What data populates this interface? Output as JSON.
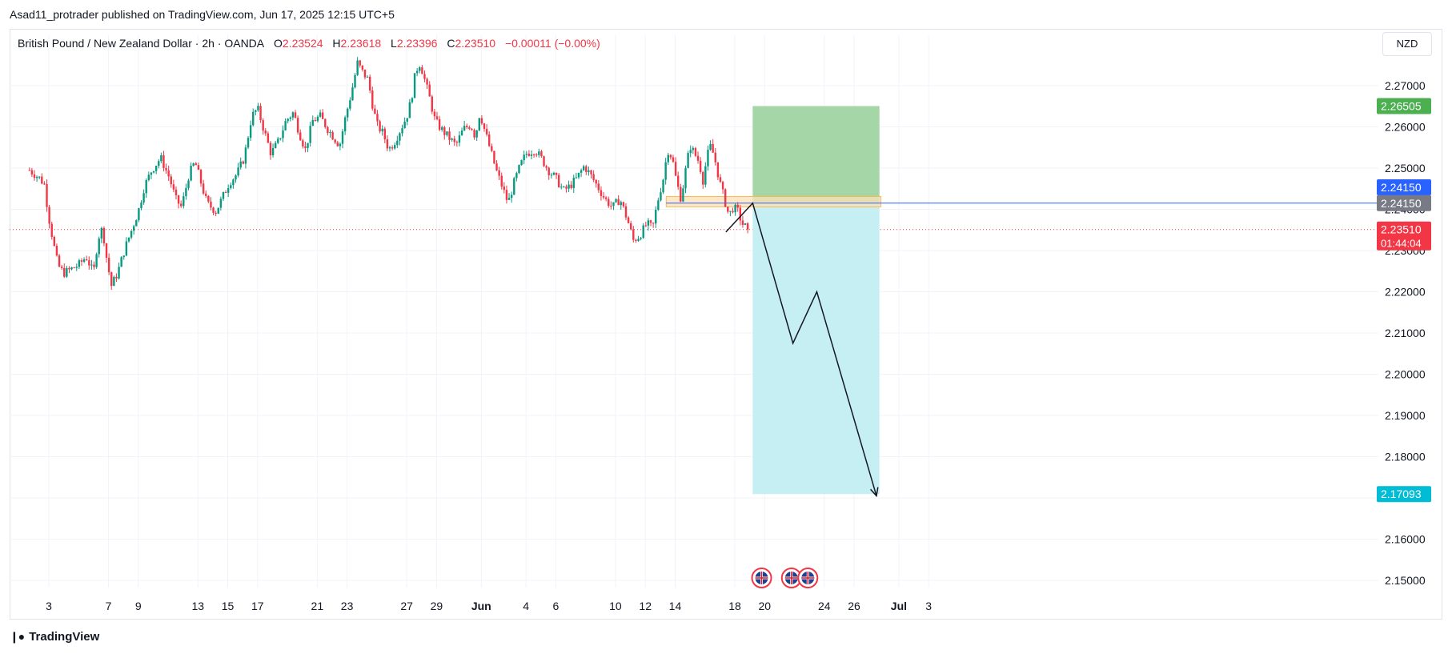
{
  "header": {
    "published_line": "Asad11_protrader published on TradingView.com, Jun 17, 2025 12:15 UTC+5"
  },
  "legend": {
    "symbol": "British Pound / New Zealand Dollar · 2h · OANDA",
    "o_label": "O",
    "o_value": "2.23524",
    "h_label": "H",
    "h_value": "2.23618",
    "l_label": "L",
    "l_value": "2.23396",
    "c_label": "C",
    "c_value": "2.23510",
    "change": "−0.00011 (−0.00%)"
  },
  "currency_button": "NZD",
  "footer": {
    "logo_text": "TradingView"
  },
  "colors": {
    "up": "#089981",
    "down": "#f23645",
    "grid": "#f0f3fa",
    "target_zone": "#a5d6a7",
    "stop_zone": "#c6eff4",
    "entry_zone": "#ffe0b2",
    "entry_line": "#2962ff",
    "tp_badge": "#4caf50",
    "sl_badge": "#00bcd4",
    "entry_badge_blue": "#2962ff",
    "entry_badge_gray": "#787b86",
    "last_price_badge": "#f23645"
  },
  "chart_data": {
    "type": "candlestick",
    "symbol": "British Pound / New Zealand Dollar",
    "interval": "2h",
    "y_axis": {
      "ticks": [
        "2.27000",
        "2.26000",
        "2.25000",
        "2.24000",
        "2.23000",
        "2.22000",
        "2.21000",
        "2.20000",
        "2.19000",
        "2.18000",
        "2.17000",
        "2.16000",
        "2.15000"
      ],
      "range": [
        2.1453,
        2.2819
      ],
      "position": "right"
    },
    "x_axis": {
      "labels": [
        {
          "text": "3",
          "day": 0
        },
        {
          "text": "7",
          "day": 4
        },
        {
          "text": "9",
          "day": 6
        },
        {
          "text": "13",
          "day": 10
        },
        {
          "text": "15",
          "day": 12
        },
        {
          "text": "17",
          "day": 14
        },
        {
          "text": "21",
          "day": 18
        },
        {
          "text": "23",
          "day": 20
        },
        {
          "text": "27",
          "day": 24
        },
        {
          "text": "29",
          "day": 26
        },
        {
          "text": "Jun",
          "day": 29,
          "bold": true
        },
        {
          "text": "4",
          "day": 32
        },
        {
          "text": "6",
          "day": 34
        },
        {
          "text": "10",
          "day": 38
        },
        {
          "text": "12",
          "day": 40
        },
        {
          "text": "14",
          "day": 42
        },
        {
          "text": "18",
          "day": 46
        },
        {
          "text": "20",
          "day": 48
        },
        {
          "text": "24",
          "day": 52
        },
        {
          "text": "26",
          "day": 54
        },
        {
          "text": "Jul",
          "day": 57,
          "bold": true
        },
        {
          "text": "3",
          "day": 59
        }
      ]
    },
    "price_path": [
      [
        -1.3,
        2.2495
      ],
      [
        -0.6,
        2.2475
      ],
      [
        -0.3,
        2.246
      ],
      [
        0.0,
        2.238
      ],
      [
        0.3,
        2.232
      ],
      [
        0.6,
        2.2265
      ],
      [
        1.0,
        2.2245
      ],
      [
        1.5,
        2.2255
      ],
      [
        2.0,
        2.2265
      ],
      [
        2.5,
        2.2285
      ],
      [
        3.0,
        2.2245
      ],
      [
        3.3,
        2.233
      ],
      [
        3.6,
        2.2355
      ],
      [
        3.9,
        2.2275
      ],
      [
        4.2,
        2.2215
      ],
      [
        4.6,
        2.2245
      ],
      [
        5.1,
        2.2305
      ],
      [
        5.6,
        2.2355
      ],
      [
        6.0,
        2.2395
      ],
      [
        6.4,
        2.2455
      ],
      [
        6.9,
        2.2495
      ],
      [
        7.5,
        2.2525
      ],
      [
        8.1,
        2.2475
      ],
      [
        8.5,
        2.2425
      ],
      [
        8.9,
        2.2405
      ],
      [
        9.4,
        2.2485
      ],
      [
        9.8,
        2.2515
      ],
      [
        10.2,
        2.2465
      ],
      [
        10.6,
        2.2415
      ],
      [
        11.2,
        2.2395
      ],
      [
        11.6,
        2.2425
      ],
      [
        12.1,
        2.2465
      ],
      [
        12.6,
        2.2485
      ],
      [
        13.1,
        2.2525
      ],
      [
        13.6,
        2.2625
      ],
      [
        14.0,
        2.2645
      ],
      [
        14.4,
        2.2595
      ],
      [
        14.9,
        2.2535
      ],
      [
        15.4,
        2.2565
      ],
      [
        15.9,
        2.2615
      ],
      [
        16.4,
        2.2635
      ],
      [
        16.8,
        2.2585
      ],
      [
        17.2,
        2.2545
      ],
      [
        17.7,
        2.2615
      ],
      [
        18.2,
        2.2625
      ],
      [
        18.7,
        2.2595
      ],
      [
        19.1,
        2.2575
      ],
      [
        19.5,
        2.2555
      ],
      [
        19.9,
        2.2625
      ],
      [
        20.3,
        2.2685
      ],
      [
        20.7,
        2.2755
      ],
      [
        21.0,
        2.2735
      ],
      [
        21.4,
        2.2715
      ],
      [
        21.7,
        2.2655
      ],
      [
        22.0,
        2.2605
      ],
      [
        22.4,
        2.2585
      ],
      [
        22.8,
        2.2545
      ],
      [
        23.2,
        2.2565
      ],
      [
        23.6,
        2.2595
      ],
      [
        24.0,
        2.2625
      ],
      [
        24.3,
        2.2665
      ],
      [
        24.6,
        2.2735
      ],
      [
        24.9,
        2.2755
      ],
      [
        25.2,
        2.2715
      ],
      [
        25.5,
        2.2675
      ],
      [
        25.9,
        2.2615
      ],
      [
        26.3,
        2.2595
      ],
      [
        26.8,
        2.2575
      ],
      [
        27.3,
        2.2555
      ],
      [
        27.8,
        2.2595
      ],
      [
        28.3,
        2.2605
      ],
      [
        28.6,
        2.2575
      ],
      [
        28.9,
        2.2635
      ],
      [
        29.2,
        2.2595
      ],
      [
        29.6,
        2.2545
      ],
      [
        30.0,
        2.2495
      ],
      [
        30.4,
        2.2455
      ],
      [
        30.8,
        2.2415
      ],
      [
        31.2,
        2.2465
      ],
      [
        31.6,
        2.2505
      ],
      [
        32.0,
        2.2535
      ],
      [
        32.6,
        2.2545
      ],
      [
        33.0,
        2.2525
      ],
      [
        33.5,
        2.2495
      ],
      [
        34.0,
        2.2475
      ],
      [
        34.5,
        2.2445
      ],
      [
        34.9,
        2.2455
      ],
      [
        35.4,
        2.2475
      ],
      [
        35.9,
        2.2505
      ],
      [
        36.3,
        2.2485
      ],
      [
        36.8,
        2.2455
      ],
      [
        37.3,
        2.2425
      ],
      [
        37.8,
        2.2405
      ],
      [
        38.3,
        2.2425
      ],
      [
        38.8,
        2.2375
      ],
      [
        39.2,
        2.2325
      ],
      [
        39.6,
        2.2335
      ],
      [
        40.1,
        2.2365
      ],
      [
        40.5,
        2.2355
      ],
      [
        40.8,
        2.2415
      ],
      [
        41.2,
        2.2475
      ],
      [
        41.5,
        2.2545
      ],
      [
        41.8,
        2.2525
      ],
      [
        42.1,
        2.2465
      ],
      [
        42.4,
        2.2425
      ],
      [
        42.7,
        2.2495
      ],
      [
        43.0,
        2.2555
      ],
      [
        43.3,
        2.2535
      ],
      [
        43.6,
        2.2515
      ],
      [
        43.9,
        2.2465
      ],
      [
        44.1,
        2.2525
      ],
      [
        44.4,
        2.2555
      ],
      [
        44.7,
        2.2515
      ],
      [
        45.0,
        2.2465
      ],
      [
        45.3,
        2.2425
      ],
      [
        45.6,
        2.2385
      ],
      [
        45.9,
        2.2405
      ],
      [
        46.2,
        2.2395
      ],
      [
        46.5,
        2.2365
      ],
      [
        46.8,
        2.2355
      ],
      [
        47.0,
        2.2351
      ]
    ],
    "last_price": 2.2351,
    "last_price_label": "2.23510",
    "countdown_label": "01:44:04",
    "position": {
      "direction": "short",
      "entry": 2.2415,
      "entry_label": "2.24150",
      "entry_label_2": "2.24150",
      "take_profit": 2.17093,
      "take_profit_label": "2.17093",
      "stop_loss": 2.26505,
      "stop_loss_label": "2.26505",
      "start_day": 47.2,
      "end_day": 55.7
    },
    "entry_zone": {
      "low": 2.2406,
      "high": 2.2431,
      "start_day": 41.4,
      "end_day": 55.8
    },
    "projection_path": [
      [
        45.4,
        2.2345
      ],
      [
        47.2,
        2.2415
      ],
      [
        49.9,
        2.2075
      ],
      [
        51.5,
        2.22
      ],
      [
        55.5,
        2.1705
      ]
    ],
    "event_markers_day": [
      47.8,
      49.8,
      50.9
    ],
    "grid": true
  }
}
